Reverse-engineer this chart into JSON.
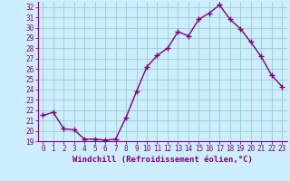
{
  "x": [
    0,
    1,
    2,
    3,
    4,
    5,
    6,
    7,
    8,
    9,
    10,
    11,
    12,
    13,
    14,
    15,
    16,
    17,
    18,
    19,
    20,
    21,
    22,
    23
  ],
  "y": [
    21.5,
    21.8,
    20.2,
    20.1,
    19.2,
    19.2,
    19.1,
    19.2,
    21.3,
    23.8,
    26.2,
    27.3,
    28.0,
    29.6,
    29.2,
    30.8,
    31.4,
    32.2,
    30.8,
    29.9,
    28.6,
    27.2,
    25.4,
    24.3
  ],
  "line_color": "#800080",
  "marker": "+",
  "bg_color": "#cceeff",
  "grid_color": "#99cccc",
  "xlabel": "Windchill (Refroidissement éolien,°C)",
  "ylim": [
    19,
    32.5
  ],
  "xlim": [
    -0.5,
    23.5
  ],
  "yticks": [
    19,
    20,
    21,
    22,
    23,
    24,
    25,
    26,
    27,
    28,
    29,
    30,
    31,
    32
  ],
  "xticks": [
    0,
    1,
    2,
    3,
    4,
    5,
    6,
    7,
    8,
    9,
    10,
    11,
    12,
    13,
    14,
    15,
    16,
    17,
    18,
    19,
    20,
    21,
    22,
    23
  ],
  "line_width": 1.0,
  "marker_size": 4,
  "tick_fontsize": 5.5,
  "xlabel_fontsize": 6.5
}
